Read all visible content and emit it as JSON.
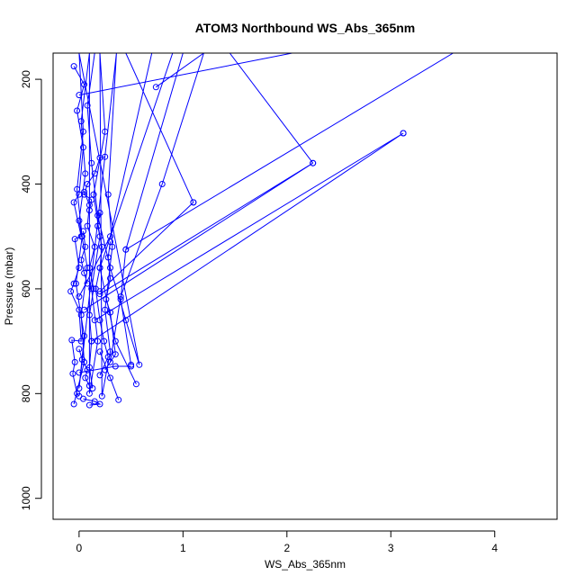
{
  "chart_data": {
    "type": "line",
    "title": "ATOM3 Northbound WS_Abs_365nm",
    "xlabel": "WS_Abs_365nm",
    "ylabel": "Pressure (mbar)",
    "xlim": [
      -0.25,
      4.6
    ],
    "ylim": [
      1040,
      150
    ],
    "y_reversed": true,
    "x_ticks": [
      0,
      1,
      2,
      3,
      4
    ],
    "y_ticks": [
      200,
      400,
      600,
      800,
      1000
    ],
    "grid": false,
    "legend": "none",
    "series_color": "#0000ff",
    "marker": "open-circle",
    "series": [
      {
        "points": [
          [
            -0.05,
            820
          ],
          [
            0.05,
            740
          ],
          [
            0.02,
            650
          ],
          [
            0.08,
            560
          ],
          [
            0.0,
            470
          ],
          [
            0.06,
            380
          ],
          [
            0.02,
            280
          ],
          [
            0.1,
            150
          ],
          [
            0.1,
            800
          ],
          [
            0.18,
            700
          ],
          [
            0.12,
            600
          ],
          [
            0.2,
            500
          ],
          [
            0.14,
            420
          ],
          [
            0.25,
            300
          ],
          [
            0.2,
            150
          ],
          [
            0.22,
            805
          ],
          [
            0.3,
            720
          ],
          [
            0.25,
            640
          ],
          [
            0.32,
            520
          ],
          [
            0.28,
            420
          ],
          [
            0.36,
            150
          ],
          [
            0.0,
            790
          ],
          [
            0.05,
            690
          ],
          [
            -0.03,
            590
          ],
          [
            0.03,
            500
          ],
          [
            -0.02,
            410
          ],
          [
            0.04,
            300
          ],
          [
            0.0,
            150
          ],
          [
            0.58,
            745
          ],
          [
            0.45,
            660
          ],
          [
            0.3,
            560
          ],
          [
            0.18,
            460
          ],
          [
            0.12,
            360
          ],
          [
            0.08,
            250
          ],
          [
            0.15,
            150
          ]
        ]
      },
      {
        "points": [
          [
            0.12,
            700
          ],
          [
            3.12,
            303
          ],
          [
            0.15,
            660
          ],
          [
            3.12,
            303
          ]
        ]
      },
      {
        "points": [
          [
            2.25,
            360
          ],
          [
            1.45,
            150
          ]
        ]
      },
      {
        "points": [
          [
            0.05,
            640
          ],
          [
            2.25,
            360
          ],
          [
            0.2,
            610
          ]
        ]
      },
      {
        "points": [
          [
            1.1,
            435
          ],
          [
            0.45,
            150
          ]
        ]
      },
      {
        "points": [
          [
            0.2,
            605
          ],
          [
            1.1,
            435
          ]
        ]
      },
      {
        "points": [
          [
            0.74,
            215
          ],
          [
            1.2,
            150
          ]
        ]
      },
      {
        "points": [
          [
            0.45,
            525
          ],
          [
            3.6,
            150
          ]
        ]
      },
      {
        "points": [
          [
            0.5,
            745
          ],
          [
            0.4,
            620
          ],
          [
            0.45,
            525
          ],
          [
            1.0,
            150
          ]
        ]
      },
      {
        "points": [
          [
            0.55,
            782
          ],
          [
            0.35,
            700
          ],
          [
            0.2,
            560
          ],
          [
            0.9,
            150
          ]
        ]
      },
      {
        "points": [
          [
            0.3,
            740
          ],
          [
            0.4,
            615
          ],
          [
            0.8,
            400
          ],
          [
            1.2,
            150
          ]
        ]
      },
      {
        "points": [
          [
            0.0,
            615
          ],
          [
            0.3,
            500
          ],
          [
            0.7,
            150
          ]
        ]
      },
      {
        "points": [
          [
            0.0,
            230
          ],
          [
            2.05,
            150
          ]
        ]
      },
      {
        "points": [
          [
            -0.05,
            175
          ],
          [
            0.05,
            210
          ],
          [
            -0.02,
            260
          ],
          [
            0.04,
            330
          ],
          [
            0.0,
            420
          ],
          [
            -0.05,
            435
          ],
          [
            0.02,
            500
          ],
          [
            -0.04,
            505
          ],
          [
            0.0,
            560
          ],
          [
            -0.05,
            590
          ],
          [
            -0.08,
            605
          ],
          [
            0.0,
            640
          ],
          [
            0.02,
            700
          ],
          [
            -0.07,
            698
          ],
          [
            -0.04,
            740
          ],
          [
            -0.06,
            762
          ],
          [
            -0.02,
            800
          ],
          [
            0.0,
            805
          ]
        ]
      },
      {
        "points": [
          [
            0.05,
            415
          ],
          [
            0.1,
            440
          ],
          [
            0.08,
            480
          ],
          [
            0.15,
            520
          ],
          [
            0.1,
            560
          ],
          [
            0.14,
            600
          ],
          [
            0.1,
            650
          ],
          [
            0.12,
            700
          ],
          [
            0.1,
            750
          ],
          [
            0.13,
            790
          ]
        ]
      },
      {
        "points": [
          [
            0.2,
            455
          ],
          [
            0.18,
            480
          ],
          [
            0.22,
            520
          ],
          [
            0.2,
            560
          ],
          [
            0.16,
            600
          ],
          [
            0.2,
            660
          ],
          [
            0.24,
            700
          ],
          [
            0.28,
            730
          ],
          [
            0.2,
            765
          ]
        ]
      },
      {
        "points": [
          [
            0.3,
            510
          ],
          [
            0.28,
            540
          ],
          [
            0.3,
            580
          ],
          [
            0.26,
            620
          ],
          [
            0.3,
            645
          ],
          [
            0.35,
            725
          ],
          [
            0.25,
            755
          ]
        ]
      },
      {
        "points": [
          [
            0.0,
            760
          ],
          [
            0.35,
            748
          ],
          [
            0.5,
            748
          ]
        ]
      },
      {
        "points": [
          [
            0.04,
            810
          ],
          [
            0.15,
            815
          ],
          [
            0.2,
            820
          ],
          [
            0.1,
            822
          ]
        ]
      },
      {
        "points": [
          [
            0.38,
            812
          ],
          [
            0.3,
            770
          ],
          [
            0.2,
            720
          ]
        ]
      },
      {
        "points": [
          [
            0.1,
            450
          ],
          [
            0.12,
            430
          ],
          [
            0.05,
            420
          ],
          [
            0.08,
            400
          ],
          [
            0.15,
            380
          ],
          [
            0.2,
            350
          ],
          [
            0.25,
            348
          ]
        ]
      },
      {
        "points": [
          [
            0.04,
            490
          ],
          [
            0.06,
            520
          ],
          [
            0.02,
            545
          ],
          [
            0.05,
            570
          ],
          [
            0.08,
            590
          ]
        ]
      },
      {
        "points": [
          [
            0.0,
            715
          ],
          [
            0.03,
            735
          ],
          [
            0.08,
            755
          ],
          [
            0.06,
            770
          ],
          [
            0.1,
            785
          ]
        ]
      }
    ]
  }
}
